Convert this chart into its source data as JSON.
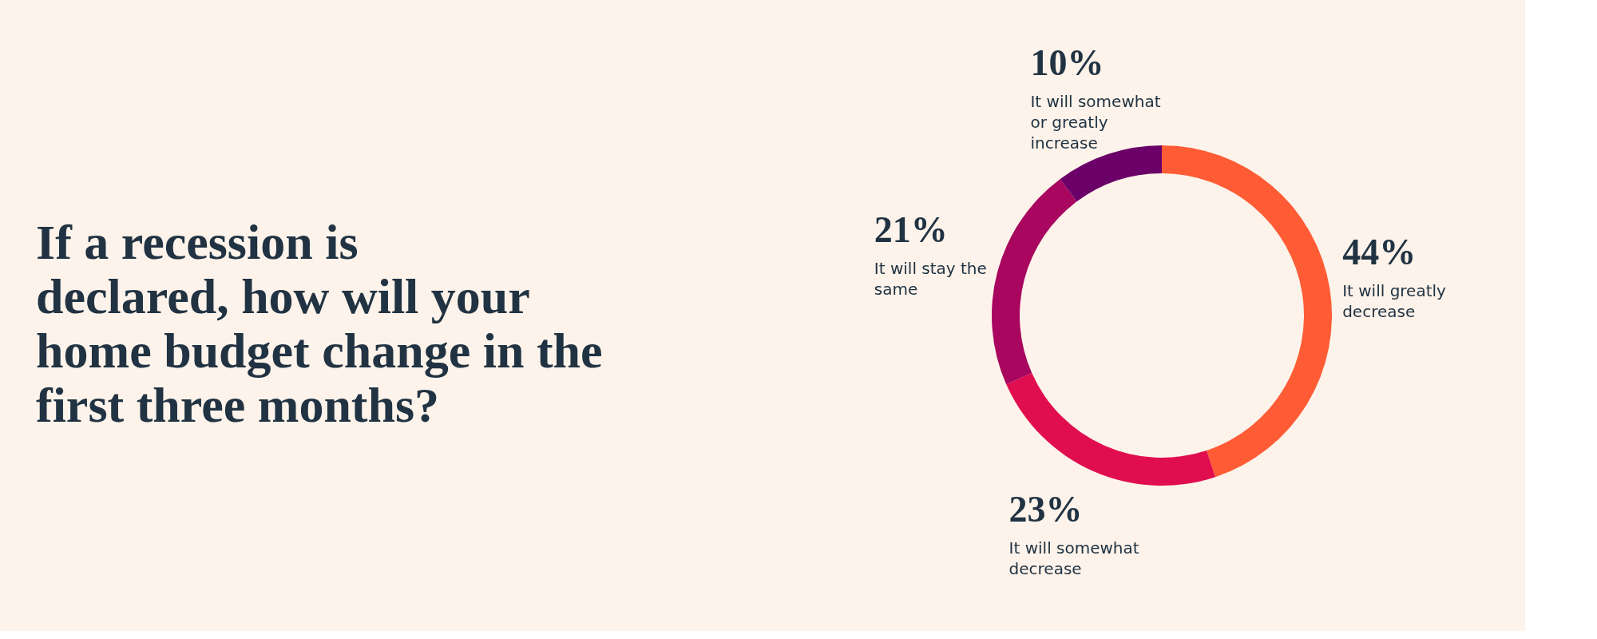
{
  "chart_data": {
    "type": "donut",
    "title": "If a recession is declared, how will your home budget change in the first three months?",
    "categories": [
      "It will greatly decrease",
      "It will somewhat decrease",
      "It will stay the same",
      "It will somewhat or greatly increase"
    ],
    "values": [
      44,
      23,
      21,
      10
    ],
    "value_labels": [
      "44%",
      "23%",
      "21%",
      "10%"
    ],
    "colors": [
      "#ff5c35",
      "#e00e4f",
      "#a8065f",
      "#6a0068"
    ],
    "legend": false
  }
}
